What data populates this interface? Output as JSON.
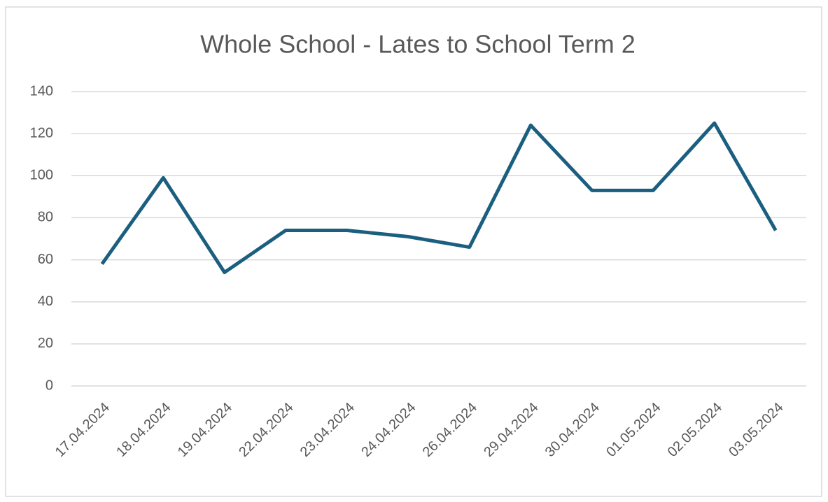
{
  "chart_data": {
    "type": "line",
    "title": "Whole School - Lates to School Term 2",
    "categories": [
      "17.04.2024",
      "18.04.2024",
      "19.04.2024",
      "22.04.2024",
      "23.04.2024",
      "24.04.2024",
      "26.04.2024",
      "29.04.2024",
      "30.04.2024",
      "01.05.2024",
      "02.05.2024",
      "03.05.2024"
    ],
    "values": [
      58,
      99,
      54,
      74,
      74,
      71,
      66,
      124,
      93,
      93,
      125,
      74
    ],
    "color": "#1b5f80",
    "ylim": [
      0,
      140
    ],
    "yticks": [
      0,
      20,
      40,
      60,
      80,
      100,
      120,
      140
    ],
    "grid": true
  }
}
